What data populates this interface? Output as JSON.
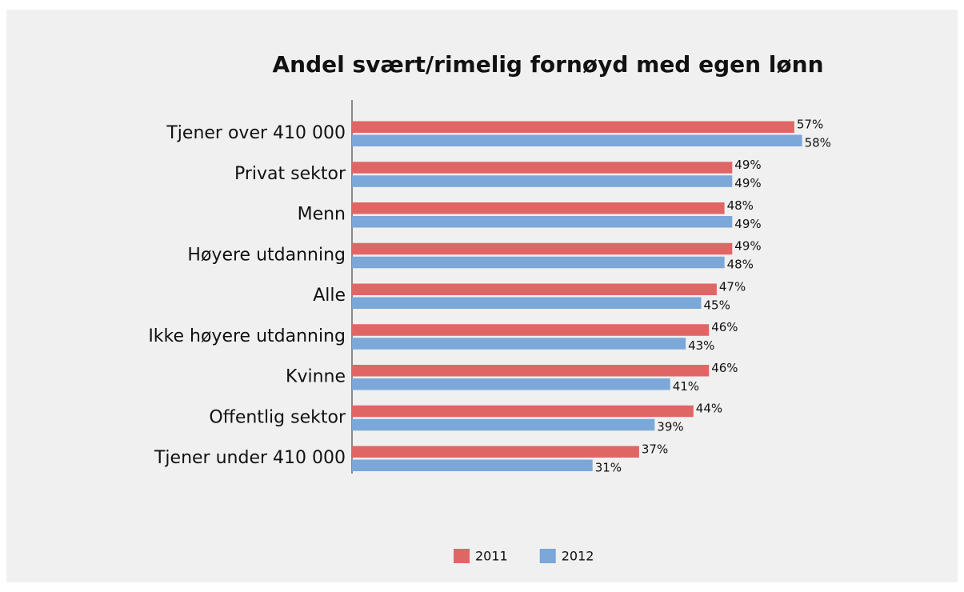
{
  "chart_data": {
    "type": "bar",
    "orientation": "horizontal",
    "title": "Andel svært/rimelig fornøyd med egen lønn",
    "categories": [
      "Tjener over 410 000",
      "Privat sektor",
      "Menn",
      "Høyere utdanning",
      "Alle",
      "Ikke høyere utdanning",
      "Kvinne",
      "Offentlig sektor",
      "Tjener under 410 000"
    ],
    "series": [
      {
        "name": "2011",
        "color": "#e06666",
        "values": [
          57,
          49,
          48,
          49,
          47,
          46,
          46,
          44,
          37
        ],
        "value_labels": [
          "57%",
          "49%",
          "48%",
          "49%",
          "47%",
          "46%",
          "46%",
          "44%",
          "37%"
        ]
      },
      {
        "name": "2012",
        "color": "#7ba7d9",
        "values": [
          58,
          49,
          49,
          48,
          45,
          43,
          41,
          39,
          31
        ],
        "value_labels": [
          "58%",
          "49%",
          "49%",
          "48%",
          "45%",
          "43%",
          "41%",
          "39%",
          "31%"
        ]
      }
    ],
    "xlim": [
      0,
      60
    ],
    "legend": "bottom"
  }
}
